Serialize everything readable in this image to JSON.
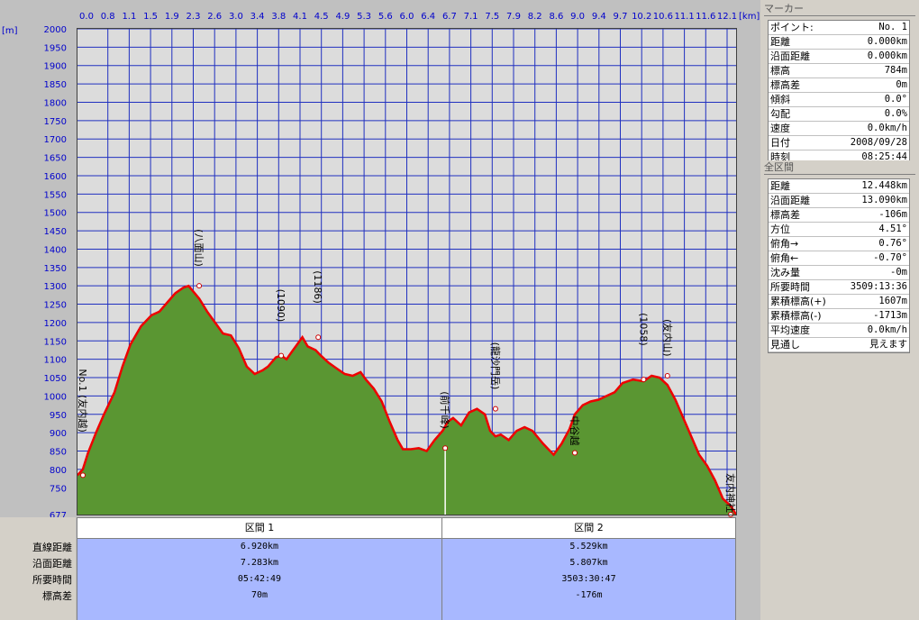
{
  "chart_data": {
    "type": "area",
    "x_unit": "[km]",
    "y_unit": "[m]",
    "xlim": [
      0,
      12.448
    ],
    "ylim": [
      677,
      2000
    ],
    "x_ticks": [
      "0.0",
      "0.8",
      "1.1",
      "1.5",
      "1.9",
      "2.3",
      "2.6",
      "3.0",
      "3.4",
      "3.8",
      "4.1",
      "4.5",
      "4.9",
      "5.3",
      "5.6",
      "6.0",
      "6.4",
      "6.7",
      "7.1",
      "7.5",
      "7.9",
      "8.2",
      "8.6",
      "9.0",
      "9.4",
      "9.7",
      "10.2",
      "10.6",
      "11.1",
      "11.6",
      "12.1"
    ],
    "y_ticks": [
      2000,
      1950,
      1900,
      1850,
      1800,
      1750,
      1700,
      1650,
      1600,
      1550,
      1500,
      1450,
      1400,
      1350,
      1300,
      1250,
      1200,
      1150,
      1100,
      1050,
      1000,
      950,
      900,
      850,
      800,
      750
    ],
    "y_min_label": "677",
    "fill_color": "#5a9632",
    "line_color": "#ee0000",
    "plot_bg": "#dcdcdc",
    "grid_color": "#2030c0",
    "profile": {
      "x": [
        0.0,
        0.1,
        0.2,
        0.35,
        0.5,
        0.7,
        0.85,
        1.0,
        1.2,
        1.4,
        1.55,
        1.7,
        1.85,
        2.0,
        2.1,
        2.3,
        2.45,
        2.6,
        2.75,
        2.9,
        3.05,
        3.2,
        3.35,
        3.5,
        3.6,
        3.75,
        3.85,
        3.95,
        4.05,
        4.15,
        4.25,
        4.35,
        4.5,
        4.6,
        4.75,
        4.9,
        5.05,
        5.2,
        5.35,
        5.45,
        5.6,
        5.75,
        5.9,
        6.05,
        6.15,
        6.3,
        6.45,
        6.6,
        6.75,
        6.9,
        7.0,
        7.1,
        7.25,
        7.4,
        7.55,
        7.7,
        7.8,
        7.9,
        8.0,
        8.15,
        8.3,
        8.45,
        8.6,
        8.8,
        9.0,
        9.15,
        9.3,
        9.4,
        9.55,
        9.7,
        9.85,
        10.0,
        10.15,
        10.3,
        10.5,
        10.7,
        10.85,
        11.0,
        11.15,
        11.3,
        11.45,
        11.6,
        11.75,
        11.9,
        12.05,
        12.2,
        12.35,
        12.448
      ],
      "y": [
        784,
        800,
        845,
        900,
        950,
        1010,
        1080,
        1140,
        1190,
        1220,
        1230,
        1255,
        1280,
        1295,
        1300,
        1265,
        1230,
        1200,
        1170,
        1165,
        1130,
        1080,
        1060,
        1070,
        1080,
        1105,
        1110,
        1100,
        1120,
        1140,
        1160,
        1135,
        1125,
        1110,
        1090,
        1075,
        1060,
        1055,
        1065,
        1045,
        1020,
        985,
        930,
        880,
        855,
        855,
        858,
        850,
        880,
        905,
        930,
        940,
        920,
        955,
        965,
        950,
        905,
        890,
        895,
        880,
        905,
        915,
        905,
        870,
        840,
        870,
        910,
        950,
        975,
        985,
        990,
        1000,
        1010,
        1035,
        1045,
        1040,
        1055,
        1050,
        1030,
        990,
        940,
        890,
        840,
        810,
        770,
        720,
        700,
        677
      ]
    },
    "annotations": [
      {
        "label": "No.1 (友内越)",
        "x": 0.0,
        "y": 784
      },
      {
        "label": "(八面山)",
        "x": 2.3,
        "y": 1300
      },
      {
        "label": "(1090)",
        "x": 3.85,
        "y": 1110
      },
      {
        "label": "(1186)",
        "x": 4.55,
        "y": 1160
      },
      {
        "label": "(前千峰)",
        "x": 6.95,
        "y": 858
      },
      {
        "label": "(龍沙門岳)",
        "x": 7.9,
        "y": 965
      },
      {
        "label": "中谷越",
        "x": 9.4,
        "y": 845
      },
      {
        "label": "(1058)",
        "x": 10.7,
        "y": 1045
      },
      {
        "label": "(友内山)",
        "x": 11.15,
        "y": 1055
      },
      {
        "label": "友内神社",
        "x": 12.448,
        "y": 677
      }
    ]
  },
  "bottom_table": {
    "row_labels": [
      "直線距離",
      "沿面距離",
      "所要時間",
      "標高差"
    ],
    "sections": [
      {
        "title": "区間 1",
        "values": [
          "6.920km",
          "7.283km",
          "05:42:49",
          "70m"
        ]
      },
      {
        "title": "区間 2",
        "values": [
          "5.529km",
          "5.807km",
          "3503:30:47",
          "-176m"
        ]
      }
    ]
  },
  "marker_panel": {
    "title": "マーカー",
    "rows": [
      {
        "k": "ポイント:",
        "v": "No. 1"
      },
      {
        "k": "距離",
        "v": "0.000km"
      },
      {
        "k": "沿面距離",
        "v": "0.000km"
      },
      {
        "k": "標高",
        "v": "784m"
      },
      {
        "k": "標高差",
        "v": "0m"
      },
      {
        "k": "傾斜",
        "v": "0.0°"
      },
      {
        "k": "勾配",
        "v": "0.0%"
      },
      {
        "k": "速度",
        "v": "0.0km/h"
      },
      {
        "k": "日付",
        "v": "2008/09/28"
      },
      {
        "k": "時刻",
        "v": "08:25:44"
      }
    ]
  },
  "all_panel": {
    "title": "全区間",
    "rows": [
      {
        "k": "距離",
        "v": "12.448km"
      },
      {
        "k": "沿面距離",
        "v": "13.090km"
      },
      {
        "k": "標高差",
        "v": "-106m"
      },
      {
        "k": "方位",
        "v": "4.51°"
      },
      {
        "k": "俯角→",
        "v": "0.76°"
      },
      {
        "k": "俯角←",
        "v": "-0.70°"
      },
      {
        "k": "沈み量",
        "v": "-0m"
      },
      {
        "k": "所要時間",
        "v": "3509:13:36"
      },
      {
        "k": "累積標高(+)",
        "v": "1607m"
      },
      {
        "k": "累積標高(-)",
        "v": "-1713m"
      },
      {
        "k": "平均速度",
        "v": "0.0km/h"
      },
      {
        "k": "見通し",
        "v": "見えます"
      }
    ]
  }
}
